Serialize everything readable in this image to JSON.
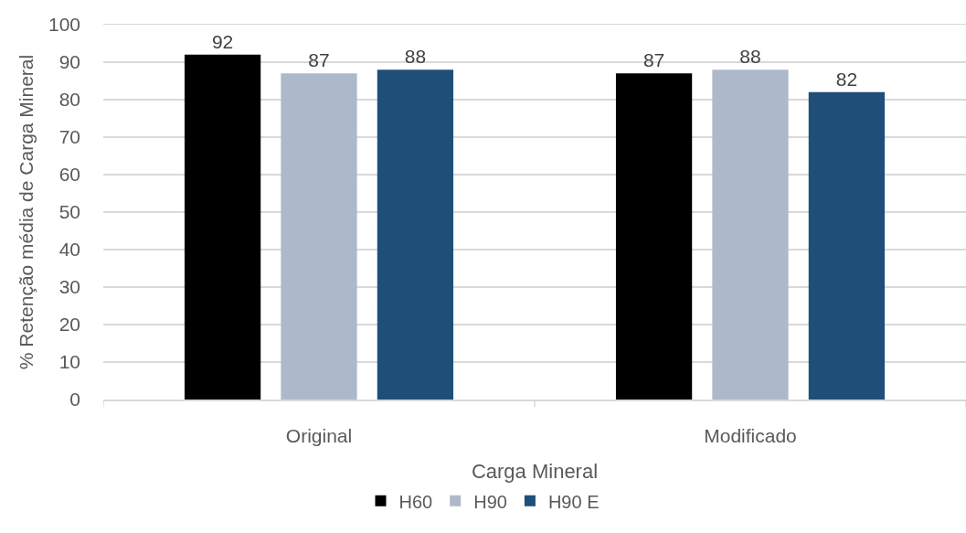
{
  "chart_data": {
    "type": "bar",
    "xlabel": "Carga Mineral",
    "ylabel": "% Retenção média de Carga Mineral",
    "categories": [
      "Original",
      "Modificado"
    ],
    "series": [
      {
        "name": "H60",
        "color": "#000000",
        "values": [
          92,
          87
        ]
      },
      {
        "name": "H90",
        "color": "#adb9ca",
        "values": [
          87,
          88
        ]
      },
      {
        "name": "H90 E",
        "color": "#1f4e79",
        "values": [
          88,
          82
        ]
      }
    ],
    "ylim": [
      0,
      100
    ],
    "yticks": [
      0,
      10,
      20,
      30,
      40,
      50,
      60,
      70,
      80,
      90,
      100
    ],
    "grid": "y",
    "legend": "bottom",
    "data_labels": true
  }
}
